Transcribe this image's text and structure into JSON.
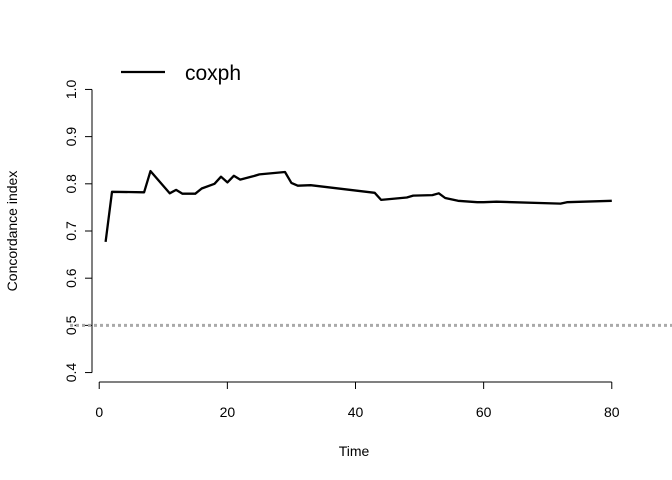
{
  "chart_data": {
    "type": "line",
    "title": "",
    "xlabel": "Time",
    "ylabel": "Concordance index",
    "xlim": [
      -3,
      83
    ],
    "ylim": [
      0.38,
      1.02
    ],
    "x_ticks": [
      0,
      20,
      40,
      60,
      80
    ],
    "y_ticks": [
      0.4,
      0.5,
      0.6,
      0.7,
      0.8,
      0.9,
      1.0
    ],
    "x_tick_labels": [
      "0",
      "20",
      "40",
      "60",
      "80"
    ],
    "y_tick_labels": [
      "0.4",
      "0.5",
      "0.6",
      "0.7",
      "0.8",
      "0.9",
      "1.0"
    ],
    "legend": {
      "placement": "top-left",
      "entries": [
        "coxph"
      ]
    },
    "reference_line": {
      "y": 0.5,
      "style": "dotted",
      "color": "#aaaaaa"
    },
    "grid": false,
    "series": [
      {
        "name": "coxph",
        "color": "#000000",
        "x": [
          1,
          2,
          7,
          8,
          11,
          12,
          13,
          15,
          16,
          18,
          19,
          20,
          21,
          22,
          24,
          25,
          29,
          30,
          31,
          33,
          43,
          44,
          48,
          49,
          52,
          53,
          54,
          56,
          59,
          60,
          62,
          72,
          73,
          80
        ],
        "y": [
          0.677,
          0.783,
          0.782,
          0.827,
          0.78,
          0.787,
          0.779,
          0.779,
          0.79,
          0.8,
          0.815,
          0.803,
          0.817,
          0.809,
          0.816,
          0.82,
          0.825,
          0.802,
          0.796,
          0.797,
          0.781,
          0.766,
          0.771,
          0.775,
          0.776,
          0.78,
          0.77,
          0.764,
          0.761,
          0.761,
          0.762,
          0.758,
          0.761,
          0.764
        ]
      }
    ]
  }
}
